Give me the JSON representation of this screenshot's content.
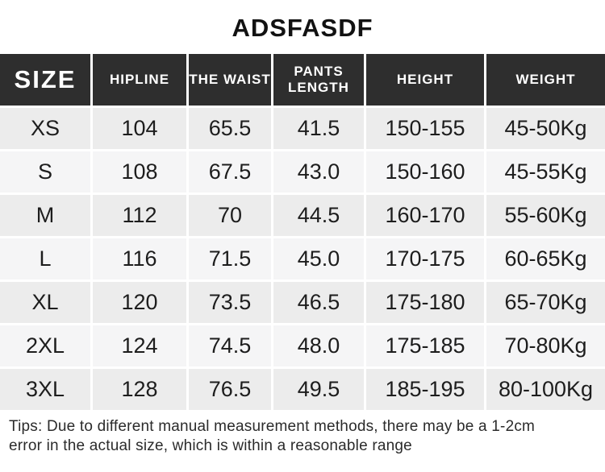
{
  "title": "ADSFASDF",
  "table": {
    "columns": [
      {
        "key": "size",
        "label": "SIZE"
      },
      {
        "key": "hipline",
        "label": "HIPLINE"
      },
      {
        "key": "waist",
        "label": "THE WAIST"
      },
      {
        "key": "pants_length",
        "label": "PANTS LENGTH"
      },
      {
        "key": "height",
        "label": "HEIGHT"
      },
      {
        "key": "weight",
        "label": "WEIGHT"
      }
    ],
    "rows": [
      [
        "XS",
        "104",
        "65.5",
        "41.5",
        "150-155",
        "45-50Kg"
      ],
      [
        "S",
        "108",
        "67.5",
        "43.0",
        "150-160",
        "45-55Kg"
      ],
      [
        "M",
        "112",
        "70",
        "44.5",
        "160-170",
        "55-60Kg"
      ],
      [
        "L",
        "116",
        "71.5",
        "45.0",
        "170-175",
        "60-65Kg"
      ],
      [
        "XL",
        "120",
        "73.5",
        "46.5",
        "175-180",
        "65-70Kg"
      ],
      [
        "2XL",
        "124",
        "74.5",
        "48.0",
        "175-185",
        "70-80Kg"
      ],
      [
        "3XL",
        "128",
        "76.5",
        "49.5",
        "185-195",
        "80-100Kg"
      ]
    ]
  },
  "tips": {
    "lines": [
      "Tips: Due to different manual measurement methods, there may be a 1-2cm",
      "error in the actual size, which is within a reasonable range"
    ]
  },
  "colors": {
    "header_bg": "#2e2e2e",
    "header_text": "#ffffff",
    "row_odd_bg": "#ececec",
    "row_even_bg": "#f5f5f6",
    "body_text": "#1d1d1d",
    "page_bg": "#ffffff"
  }
}
